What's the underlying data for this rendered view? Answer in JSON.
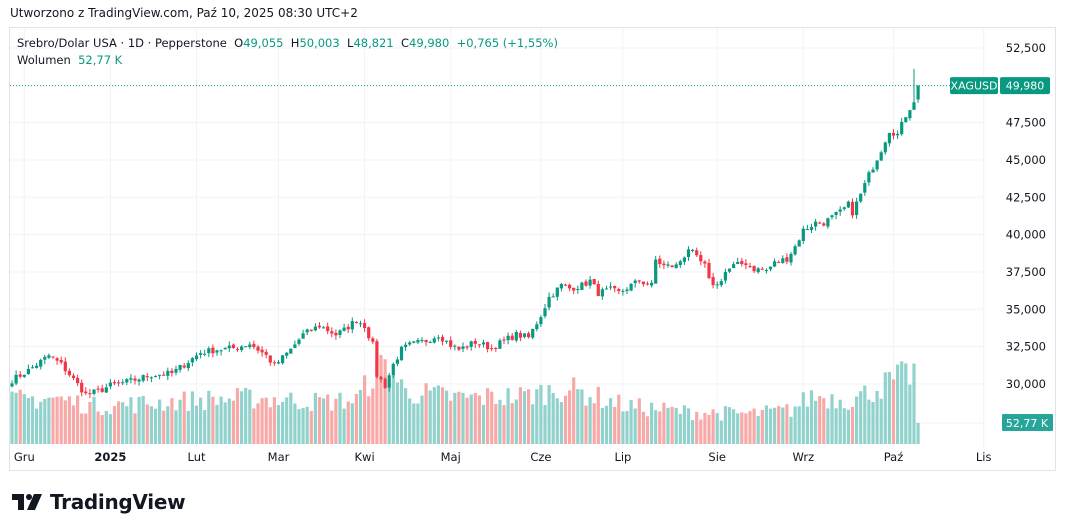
{
  "header": {
    "created_text": "Utworzono z TradingView.com, Paź 10, 2025 08:30 UTC+2"
  },
  "legend": {
    "title": "Srebro/Dolar USA · 1D · Pepperstone",
    "o_label": "O",
    "o_value": "49,055",
    "h_label": "H",
    "h_value": "50,003",
    "l_label": "L",
    "l_value": "48,821",
    "c_label": "C",
    "c_value": "49,980",
    "change": "+0,765 (+1,55%)",
    "volume_label": "Wolumen",
    "volume_value": "52,77 K"
  },
  "badges": {
    "symbol": "XAGUSD",
    "price": "49,980",
    "volume": "52,77 K"
  },
  "logo": {
    "text": "TradingView"
  },
  "colors": {
    "up": "#089981",
    "down": "#f23645",
    "vol_up": "#92d2cc",
    "vol_down": "#f7a9a7",
    "grid": "#f0f3fa"
  },
  "chart_data": {
    "type": "candlestick",
    "title": "Srebro/Dolar USA · 1D · Pepperstone",
    "interval": "1D",
    "bar_count": 222,
    "y_ticks": [
      "52,500",
      "47,500",
      "45,000",
      "42,500",
      "40,000",
      "37,500",
      "35,000",
      "32,500",
      "30,000"
    ],
    "y_tick_values": [
      52.5,
      47.5,
      45.0,
      42.5,
      40.0,
      37.5,
      35.0,
      32.5,
      30.0
    ],
    "ylim": [
      28.0,
      53.0
    ],
    "x_ticks": [
      {
        "label": "Gru",
        "bar": 3
      },
      {
        "label": "2025",
        "bar": 24,
        "bold": true
      },
      {
        "label": "Lut",
        "bar": 45
      },
      {
        "label": "Mar",
        "bar": 65
      },
      {
        "label": "Kwi",
        "bar": 86
      },
      {
        "label": "Maj",
        "bar": 107
      },
      {
        "label": "Cze",
        "bar": 129
      },
      {
        "label": "Lip",
        "bar": 149
      },
      {
        "label": "Sie",
        "bar": 172
      },
      {
        "label": "Wrz",
        "bar": 193
      },
      {
        "label": "Paź",
        "bar": 215
      },
      {
        "label": "Lis",
        "bar": 237
      }
    ],
    "close_anchors": [
      [
        0,
        30.26
      ],
      [
        4,
        30.9
      ],
      [
        9,
        31.9
      ],
      [
        12,
        31.3
      ],
      [
        15,
        30.3
      ],
      [
        18,
        29.3
      ],
      [
        21,
        29.5
      ],
      [
        24,
        29.9
      ],
      [
        29,
        30.2
      ],
      [
        34,
        30.6
      ],
      [
        39,
        30.7
      ],
      [
        42,
        31.3
      ],
      [
        46,
        32.1
      ],
      [
        50,
        32.3
      ],
      [
        54,
        32.4
      ],
      [
        58,
        32.7
      ],
      [
        62,
        31.9
      ],
      [
        64,
        31.2
      ],
      [
        68,
        32.3
      ],
      [
        71,
        33.3
      ],
      [
        75,
        33.9
      ],
      [
        79,
        33.3
      ],
      [
        81,
        33.6
      ],
      [
        84,
        34.3
      ],
      [
        86,
        33.9
      ],
      [
        88,
        32.6
      ],
      [
        89,
        30.6
      ],
      [
        91,
        29.9
      ],
      [
        93,
        31.3
      ],
      [
        95,
        32.3
      ],
      [
        97,
        32.6
      ],
      [
        101,
        32.9
      ],
      [
        104,
        33.3
      ],
      [
        107,
        32.6
      ],
      [
        109,
        32.3
      ],
      [
        113,
        32.8
      ],
      [
        117,
        32.4
      ],
      [
        120,
        32.9
      ],
      [
        123,
        33.3
      ],
      [
        126,
        33.1
      ],
      [
        129,
        34.6
      ],
      [
        131,
        35.8
      ],
      [
        134,
        36.6
      ],
      [
        136,
        36.4
      ],
      [
        139,
        36.6
      ],
      [
        141,
        36.9
      ],
      [
        143,
        36.1
      ],
      [
        146,
        36.3
      ],
      [
        148,
        36.1
      ],
      [
        151,
        36.6
      ],
      [
        153,
        36.9
      ],
      [
        156,
        36.6
      ],
      [
        157,
        38.3
      ],
      [
        159,
        37.9
      ],
      [
        162,
        37.9
      ],
      [
        164,
        38.6
      ],
      [
        165,
        39.1
      ],
      [
        167,
        38.4
      ],
      [
        169,
        37.9
      ],
      [
        170,
        36.9
      ],
      [
        172,
        36.6
      ],
      [
        174,
        37.5
      ],
      [
        176,
        37.9
      ],
      [
        179,
        38.1
      ],
      [
        181,
        37.7
      ],
      [
        184,
        37.6
      ],
      [
        186,
        38.1
      ],
      [
        189,
        38.4
      ],
      [
        191,
        39.2
      ],
      [
        193,
        40.3
      ],
      [
        196,
        40.8
      ],
      [
        198,
        40.8
      ],
      [
        202,
        41.5
      ],
      [
        204,
        42.0
      ],
      [
        205,
        41.5
      ],
      [
        207,
        42.7
      ],
      [
        209,
        44.0
      ],
      [
        212,
        45.7
      ],
      [
        214,
        47.0
      ],
      [
        216,
        46.7
      ],
      [
        218,
        48.0
      ],
      [
        220,
        49.0
      ],
      [
        221,
        49.98
      ]
    ],
    "last_bar": {
      "open": 49.055,
      "high": 50.003,
      "low": 48.821,
      "close": 49.98
    },
    "volume_anchors_k": [
      [
        0,
        110
      ],
      [
        10,
        115
      ],
      [
        20,
        95
      ],
      [
        30,
        100
      ],
      [
        45,
        110
      ],
      [
        60,
        115
      ],
      [
        75,
        105
      ],
      [
        84,
        110
      ],
      [
        88,
        170
      ],
      [
        91,
        200
      ],
      [
        96,
        130
      ],
      [
        110,
        115
      ],
      [
        125,
        120
      ],
      [
        135,
        140
      ],
      [
        150,
        95
      ],
      [
        165,
        80
      ],
      [
        180,
        75
      ],
      [
        190,
        85
      ],
      [
        195,
        120
      ],
      [
        205,
        110
      ],
      [
        212,
        145
      ],
      [
        220,
        180
      ],
      [
        221,
        52.77
      ]
    ],
    "volume_last_k": 52.77
  }
}
